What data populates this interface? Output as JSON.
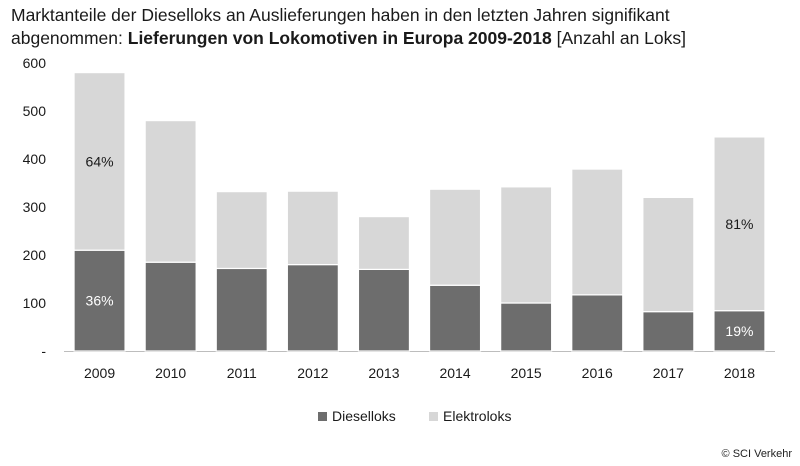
{
  "title": {
    "line1": "Marktanteile der Dieselloks an Auslieferungen haben in den letzten Jahren signifikant",
    "line2_prefix": "abgenommen: ",
    "line2_bold": "Lieferungen von Lokomotiven in Europa 2009-2018",
    "line2_suffix": " [Anzahl an Loks]"
  },
  "credit": "© SCI Verkehr",
  "chart_data": {
    "type": "bar",
    "stacked": true,
    "categories": [
      "2009",
      "2010",
      "2011",
      "2012",
      "2013",
      "2014",
      "2015",
      "2016",
      "2017",
      "2018"
    ],
    "series": [
      {
        "name": "Dieselloks",
        "color": "#6d6d6d",
        "values": [
          210,
          185,
          172,
          180,
          170,
          137,
          100,
          117,
          82,
          84
        ]
      },
      {
        "name": "Elektroloks",
        "color": "#d7d7d7",
        "values": [
          370,
          295,
          160,
          153,
          110,
          200,
          242,
          262,
          238,
          362
        ]
      }
    ],
    "ylim": [
      0,
      600
    ],
    "yticks": [
      0,
      100,
      200,
      300,
      400,
      500,
      600
    ],
    "ytick_labels": [
      "-",
      "100",
      "200",
      "300",
      "400",
      "500",
      "600"
    ],
    "annotations": [
      {
        "category": "2009",
        "series": "Elektroloks",
        "text": "64%"
      },
      {
        "category": "2009",
        "series": "Dieselloks",
        "text": "36%"
      },
      {
        "category": "2018",
        "series": "Elektroloks",
        "text": "81%"
      },
      {
        "category": "2018",
        "series": "Dieselloks",
        "text": "19%"
      }
    ],
    "legend_position": "bottom-center",
    "grid": false
  }
}
